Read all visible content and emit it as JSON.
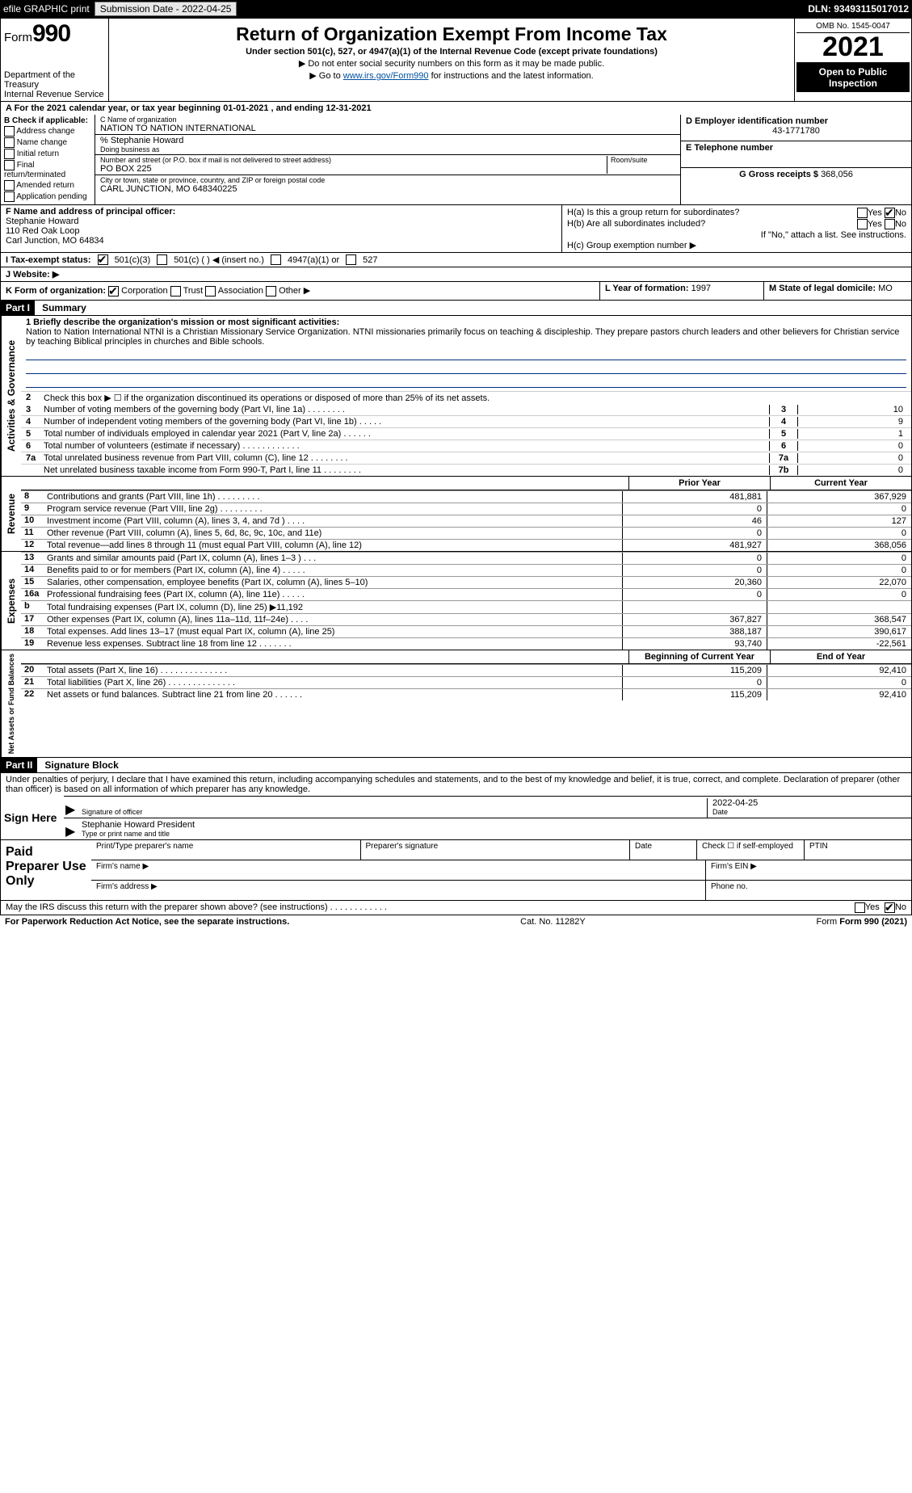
{
  "topbar": {
    "efile_label": "efile GRAPHIC print",
    "submission_label": "Submission Date - 2022-04-25",
    "dln_label": "DLN: 93493115017012"
  },
  "header": {
    "form_prefix": "Form",
    "form_number": "990",
    "dept1": "Department of the Treasury",
    "dept2": "Internal Revenue Service",
    "title": "Return of Organization Exempt From Income Tax",
    "subtitle": "Under section 501(c), 527, or 4947(a)(1) of the Internal Revenue Code (except private foundations)",
    "note1": "▶ Do not enter social security numbers on this form as it may be made public.",
    "note2_pre": "▶ Go to ",
    "note2_link": "www.irs.gov/Form990",
    "note2_post": " for instructions and the latest information.",
    "omb": "OMB No. 1545-0047",
    "year": "2021",
    "open_pub": "Open to Public Inspection"
  },
  "period": {
    "text": "A For the 2021 calendar year, or tax year beginning 01-01-2021    , and ending 12-31-2021"
  },
  "colB": {
    "heading": "B Check if applicable:",
    "items": [
      "Address change",
      "Name change",
      "Initial return",
      "Final return/terminated",
      "Amended return",
      "Application pending"
    ]
  },
  "colC": {
    "name_lbl": "C Name of organization",
    "name": "NATION TO NATION INTERNATIONAL",
    "care_of": "% Stephanie Howard",
    "dba_lbl": "Doing business as",
    "street_lbl": "Number and street (or P.O. box if mail is not delivered to street address)",
    "room_lbl": "Room/suite",
    "street": "PO BOX 225",
    "city_lbl": "City or town, state or province, country, and ZIP or foreign postal code",
    "city": "CARL JUNCTION, MO  648340225"
  },
  "colD": {
    "ein_lbl": "D Employer identification number",
    "ein": "43-1771780",
    "phone_lbl": "E Telephone number",
    "gross_lbl": "G Gross receipts $",
    "gross": "368,056"
  },
  "rowF": {
    "lbl": "F Name and address of principal officer:",
    "name": "Stephanie Howard",
    "addr1": "110 Red Oak Loop",
    "addr2": "Carl Junction, MO  64834"
  },
  "rowH": {
    "a_lbl": "H(a)  Is this a group return for subordinates?",
    "a_yes": "Yes",
    "a_no": "No",
    "b_lbl": "H(b)  Are all subordinates included?",
    "b_yes": "Yes",
    "b_no": "No",
    "b_note": "If \"No,\" attach a list. See instructions.",
    "c_lbl": "H(c)  Group exemption number ▶"
  },
  "rowI": {
    "lbl": "I  Tax-exempt status:",
    "opt1": "501(c)(3)",
    "opt2": "501(c) (   ) ◀ (insert no.)",
    "opt3": "4947(a)(1) or",
    "opt4": "527"
  },
  "rowJ": {
    "lbl": "J  Website: ▶"
  },
  "rowK": {
    "lbl": "K Form of organization:",
    "opts": [
      "Corporation",
      "Trust",
      "Association",
      "Other ▶"
    ]
  },
  "rowL": {
    "lbl": "L Year of formation:",
    "val": "1997"
  },
  "rowM": {
    "lbl": "M State of legal domicile:",
    "val": "MO"
  },
  "partI": {
    "hdr": "Part I",
    "title": "Summary",
    "side1": "Activities & Governance",
    "line1_lbl": "1  Briefly describe the organization's mission or most significant activities:",
    "mission": "Nation to Nation International NTNI is a Christian Missionary Service Organization. NTNI missionaries primarily focus on teaching & discipleship. They prepare pastors church leaders and other believers for Christian service by teaching Biblical principles in churches and Bible schools.",
    "line2": "Check this box ▶ ☐  if the organization discontinued its operations or disposed of more than 25% of its net assets.",
    "rows_ag": [
      {
        "n": "3",
        "t": "Number of voting members of the governing body (Part VI, line 1a)   .    .    .    .    .    .    .    .",
        "box": "3",
        "v": "10"
      },
      {
        "n": "4",
        "t": "Number of independent voting members of the governing body (Part VI, line 1b)   .    .    .    .    .",
        "box": "4",
        "v": "9"
      },
      {
        "n": "5",
        "t": "Total number of individuals employed in calendar year 2021 (Part V, line 2a)   .    .    .    .    .    .",
        "box": "5",
        "v": "1"
      },
      {
        "n": "6",
        "t": "Total number of volunteers (estimate if necessary)    .    .    .    .    .    .    .    .    .    .    .    .",
        "box": "6",
        "v": "0"
      },
      {
        "n": "7a",
        "t": "Total unrelated business revenue from Part VIII, column (C), line 12   .    .    .    .    .    .    .    .",
        "box": "7a",
        "v": "0"
      },
      {
        "n": "",
        "t": "Net unrelated business taxable income from Form 990-T, Part I, line 11   .    .    .    .    .    .    .    .",
        "box": "7b",
        "v": "0"
      }
    ],
    "col_prior": "Prior Year",
    "col_current": "Current Year",
    "revenue_side": "Revenue",
    "revenue_rows": [
      {
        "n": "8",
        "t": "Contributions and grants (Part VIII, line 1h)   .    .    .    .    .    .    .    .    .",
        "p": "481,881",
        "c": "367,929"
      },
      {
        "n": "9",
        "t": "Program service revenue (Part VIII, line 2g)   .    .    .    .    .    .    .    .    .",
        "p": "0",
        "c": "0"
      },
      {
        "n": "10",
        "t": "Investment income (Part VIII, column (A), lines 3, 4, and 7d )   .    .    .    .",
        "p": "46",
        "c": "127"
      },
      {
        "n": "11",
        "t": "Other revenue (Part VIII, column (A), lines 5, 6d, 8c, 9c, 10c, and 11e)",
        "p": "0",
        "c": "0"
      },
      {
        "n": "12",
        "t": "Total revenue—add lines 8 through 11 (must equal Part VIII, column (A), line 12)",
        "p": "481,927",
        "c": "368,056"
      }
    ],
    "expenses_side": "Expenses",
    "expenses_rows": [
      {
        "n": "13",
        "t": "Grants and similar amounts paid (Part IX, column (A), lines 1–3 )   .    .    .",
        "p": "0",
        "c": "0"
      },
      {
        "n": "14",
        "t": "Benefits paid to or for members (Part IX, column (A), line 4)   .    .    .    .    .",
        "p": "0",
        "c": "0"
      },
      {
        "n": "15",
        "t": "Salaries, other compensation, employee benefits (Part IX, column (A), lines 5–10)",
        "p": "20,360",
        "c": "22,070"
      },
      {
        "n": "16a",
        "t": "Professional fundraising fees (Part IX, column (A), line 11e)   .    .    .    .    .",
        "p": "0",
        "c": "0"
      },
      {
        "n": "b",
        "t": "Total fundraising expenses (Part IX, column (D), line 25) ▶11,192",
        "p": "",
        "c": ""
      },
      {
        "n": "17",
        "t": "Other expenses (Part IX, column (A), lines 11a–11d, 11f–24e)   .    .    .    .",
        "p": "367,827",
        "c": "368,547"
      },
      {
        "n": "18",
        "t": "Total expenses. Add lines 13–17 (must equal Part IX, column (A), line 25)",
        "p": "388,187",
        "c": "390,617"
      },
      {
        "n": "19",
        "t": "Revenue less expenses. Subtract line 18 from line 12   .    .    .    .    .    .    .",
        "p": "93,740",
        "c": "-22,561"
      }
    ],
    "net_side": "Net Assets or Fund Balances",
    "net_col1": "Beginning of Current Year",
    "net_col2": "End of Year",
    "net_rows": [
      {
        "n": "20",
        "t": "Total assets (Part X, line 16)   .    .    .    .    .    .    .    .    .    .    .    .    .    .",
        "p": "115,209",
        "c": "92,410"
      },
      {
        "n": "21",
        "t": "Total liabilities (Part X, line 26)   .    .    .    .    .    .    .    .    .    .    .    .    .    .",
        "p": "0",
        "c": "0"
      },
      {
        "n": "22",
        "t": "Net assets or fund balances. Subtract line 21 from line 20   .    .    .    .    .    .",
        "p": "115,209",
        "c": "92,410"
      }
    ]
  },
  "partII": {
    "hdr": "Part II",
    "title": "Signature Block",
    "penalty": "Under penalties of perjury, I declare that I have examined this return, including accompanying schedules and statements, and to the best of my knowledge and belief, it is true, correct, and complete. Declaration of preparer (other than officer) is based on all information of which preparer has any knowledge.",
    "sign_here": "Sign Here",
    "sig_officer_lbl": "Signature of officer",
    "sig_date": "2022-04-25",
    "date_lbl": "Date",
    "officer_name": "Stephanie Howard  President",
    "officer_type_lbl": "Type or print name and title",
    "paid_prep": "Paid Preparer Use Only",
    "p_name_lbl": "Print/Type preparer's name",
    "p_sig_lbl": "Preparer's signature",
    "p_date_lbl": "Date",
    "p_check_lbl": "Check ☐ if self-employed",
    "p_ptin_lbl": "PTIN",
    "firm_name_lbl": "Firm's name    ▶",
    "firm_ein_lbl": "Firm's EIN ▶",
    "firm_addr_lbl": "Firm's address ▶",
    "phone_lbl": "Phone no.",
    "discuss_lbl": "May the IRS discuss this return with the preparer shown above? (see instructions)   .    .    .    .    .    .    .    .    .    .    .    .",
    "discuss_yes": "Yes",
    "discuss_no": "No"
  },
  "footer": {
    "pra": "For Paperwork Reduction Act Notice, see the separate instructions.",
    "cat": "Cat. No. 11282Y",
    "form": "Form 990 (2021)"
  }
}
